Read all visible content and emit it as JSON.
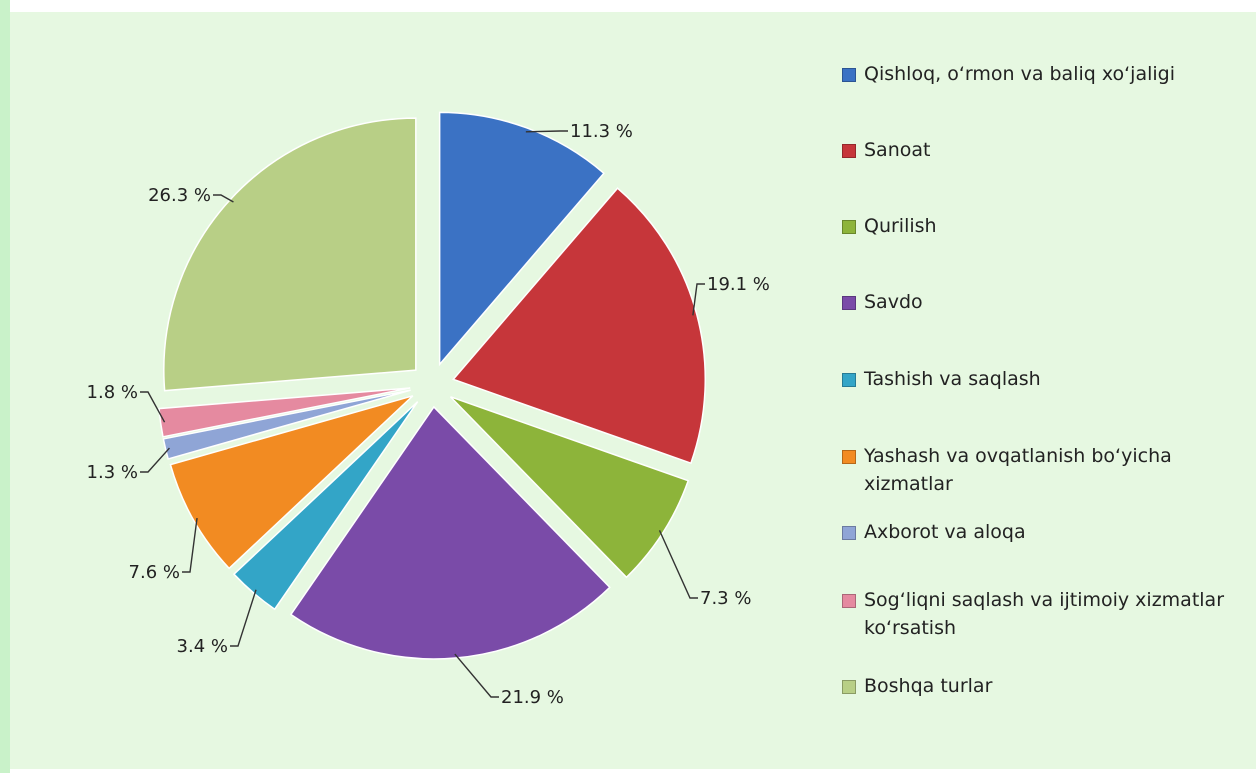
{
  "chart_data": {
    "type": "pie",
    "title": "",
    "exploded": true,
    "categories": [
      "Qishloq, o‘rmon va baliq xo‘jaligi",
      "Sanoat",
      "Qurilish",
      "Savdo",
      "Tashish va saqlash",
      "Yashash va ovqatlanish bo‘yicha xizmatlar",
      "Axborot va aloqa",
      "Sog‘liqni saqlash va ijtimoiy xizmatlar ko‘rsatish",
      "Boshqa turlar"
    ],
    "values": [
      11.3,
      19.1,
      7.3,
      21.9,
      3.4,
      7.6,
      1.3,
      1.8,
      26.3
    ],
    "data_labels": [
      "11.3 %",
      "19.1 %",
      "7.3 %",
      "21.9 %",
      "3.4 %",
      "7.6 %",
      "1.3 %",
      "1.8 %",
      "26.3 %"
    ],
    "colors": [
      "#3b72c4",
      "#c6363a",
      "#8db43a",
      "#7a4ba8",
      "#33a5c7",
      "#f28b22",
      "#8fa5d6",
      "#e58aa0",
      "#b8cf86"
    ],
    "legend_position": "right"
  }
}
